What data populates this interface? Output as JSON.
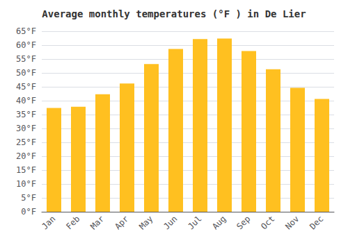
{
  "chart_data": {
    "type": "bar",
    "title": "Average monthly temperatures (°F ) in De Lier",
    "categories": [
      "Jan",
      "Feb",
      "Mar",
      "Apr",
      "May",
      "Jun",
      "Jul",
      "Aug",
      "Sep",
      "Oct",
      "Nov",
      "Dec"
    ],
    "values": [
      37.4,
      37.8,
      42.3,
      46.2,
      53.2,
      58.6,
      62.2,
      62.4,
      57.9,
      51.3,
      44.6,
      40.6
    ],
    "color": "#FFC020",
    "ylim": [
      0,
      65
    ],
    "yticks": [
      {
        "value": 0,
        "label": "0°F"
      },
      {
        "value": 5,
        "label": "5°F"
      },
      {
        "value": 10,
        "label": "10°F"
      },
      {
        "value": 15,
        "label": "15°F"
      },
      {
        "value": 20,
        "label": "20°F"
      },
      {
        "value": 25,
        "label": "25°F"
      },
      {
        "value": 30,
        "label": "30°F"
      },
      {
        "value": 35,
        "label": "35°F"
      },
      {
        "value": 40,
        "label": "40°F"
      },
      {
        "value": 45,
        "label": "45°F"
      },
      {
        "value": 50,
        "label": "50°F"
      },
      {
        "value": 55,
        "label": "55°F"
      },
      {
        "value": 60,
        "label": "60°F"
      },
      {
        "value": 65,
        "label": "65°F"
      }
    ],
    "grid": true
  }
}
